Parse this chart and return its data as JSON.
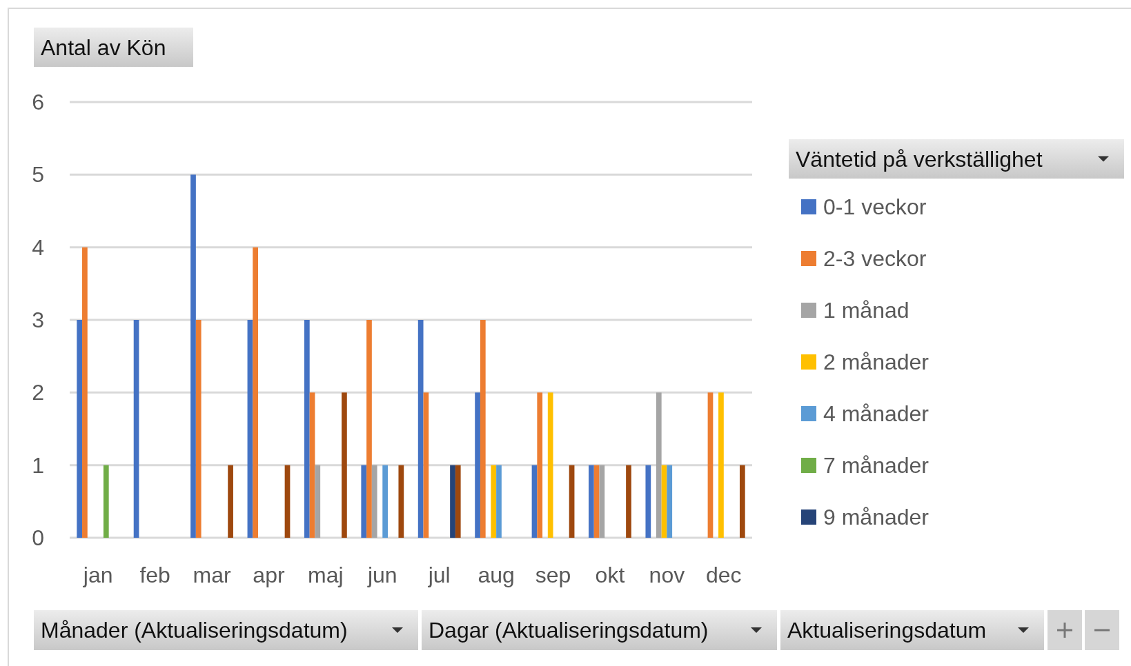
{
  "chart_data": {
    "type": "bar",
    "title": "Antal av Kön",
    "legend_title": "Väntetid på verkställighet",
    "categories": [
      "jan",
      "feb",
      "mar",
      "apr",
      "maj",
      "jun",
      "jul",
      "aug",
      "sep",
      "okt",
      "nov",
      "dec"
    ],
    "series": [
      {
        "name": "0-1 veckor",
        "color": "#4472c4",
        "values": [
          3,
          3,
          5,
          3,
          3,
          1,
          3,
          2,
          1,
          1,
          1,
          null
        ]
      },
      {
        "name": "2-3 veckor",
        "color": "#ed7d31",
        "values": [
          4,
          null,
          3,
          4,
          2,
          3,
          2,
          3,
          2,
          1,
          null,
          2
        ]
      },
      {
        "name": "1 månad",
        "color": "#a5a5a5",
        "values": [
          null,
          null,
          null,
          null,
          1,
          1,
          null,
          null,
          null,
          1,
          2,
          null
        ]
      },
      {
        "name": "2 månader",
        "color": "#ffc000",
        "values": [
          null,
          null,
          null,
          null,
          null,
          null,
          null,
          1,
          2,
          null,
          1,
          2
        ]
      },
      {
        "name": "4 månader",
        "color": "#5b9bd5",
        "values": [
          null,
          null,
          null,
          null,
          null,
          1,
          null,
          1,
          null,
          null,
          1,
          null
        ]
      },
      {
        "name": "7 månader",
        "color": "#70ad47",
        "values": [
          1,
          null,
          null,
          null,
          null,
          null,
          null,
          null,
          null,
          null,
          null,
          null
        ]
      },
      {
        "name": "9 månader",
        "color": "#264478",
        "values": [
          null,
          null,
          null,
          null,
          null,
          null,
          1,
          null,
          null,
          null,
          null,
          null
        ]
      },
      {
        "color": "#9e480e",
        "values": [
          null,
          null,
          1,
          1,
          2,
          1,
          1,
          null,
          1,
          1,
          null,
          1
        ]
      }
    ],
    "ylim": [
      0,
      6
    ],
    "yticks": [
      0,
      1,
      2,
      3,
      4,
      5,
      6
    ],
    "grid": "y",
    "legend": "right",
    "annotations": [
      "Månader (Aktualiseringsdatum)",
      "Dagar (Aktualiseringsdatum)",
      "Aktualiseringsdatum"
    ]
  }
}
